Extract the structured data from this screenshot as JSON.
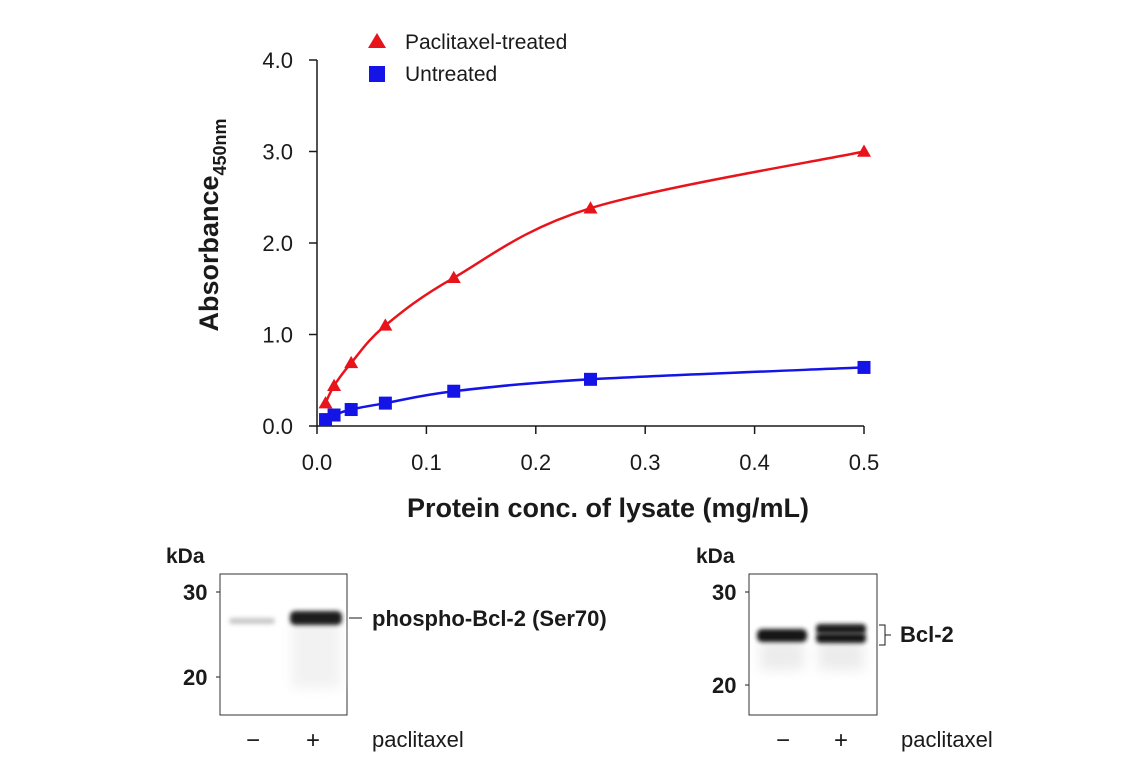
{
  "chart_data": {
    "type": "scatter",
    "title": "",
    "xlabel": "Protein conc. of lysate (mg/mL)",
    "ylabel": "Absorbance",
    "ylabel_subscript": "450nm",
    "xlim": [
      0,
      0.5
    ],
    "ylim": [
      0,
      4.0
    ],
    "x_ticks": [
      0.0,
      0.1,
      0.2,
      0.3,
      0.4,
      0.5
    ],
    "x_tick_labels": [
      "0.0",
      "0.1",
      "0.2",
      "0.3",
      "0.4",
      "0.5"
    ],
    "y_ticks": [
      0,
      1,
      2,
      3,
      4
    ],
    "y_tick_labels": [
      "0.0",
      "1.0",
      "2.0",
      "3.0",
      "4.0"
    ],
    "legend_position": "top-left",
    "grid": false,
    "series": [
      {
        "name": "Paclitaxel-treated",
        "marker": "triangle",
        "color": "#e8141b",
        "fit": "curve",
        "x": [
          0.0078,
          0.0156,
          0.03125,
          0.0625,
          0.125,
          0.25,
          0.5
        ],
        "values": [
          0.25,
          0.44,
          0.69,
          1.1,
          1.62,
          2.38,
          3.0
        ]
      },
      {
        "name": "Untreated",
        "marker": "square",
        "color": "#1414e6",
        "fit": "curve",
        "x": [
          0.0078,
          0.0156,
          0.03125,
          0.0625,
          0.125,
          0.25,
          0.5
        ],
        "values": [
          0.07,
          0.12,
          0.18,
          0.25,
          0.38,
          0.51,
          0.64
        ]
      }
    ]
  },
  "blots": [
    {
      "kda_label": "kDa",
      "mw_markers": [
        "30",
        "20"
      ],
      "band_label": "phospho-Bcl-2 (Ser70)",
      "lane_labels": [
        "−",
        "+"
      ],
      "treatment_label": "paclitaxel"
    },
    {
      "kda_label": "kDa",
      "mw_markers": [
        "30",
        "20"
      ],
      "band_label": "Bcl-2",
      "lane_labels": [
        "−",
        "+"
      ],
      "treatment_label": "paclitaxel"
    }
  ]
}
